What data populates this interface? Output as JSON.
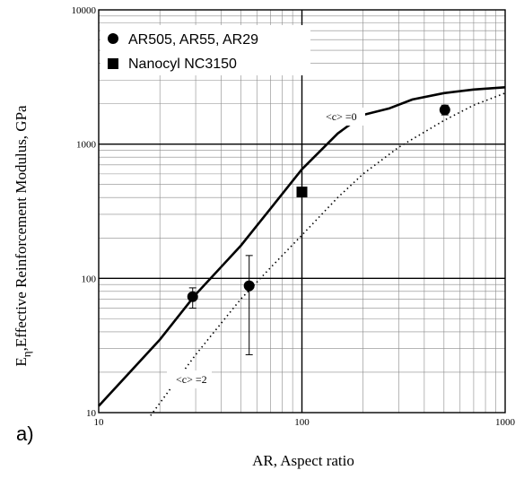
{
  "chart_data": {
    "type": "scatter",
    "panel_label": "a)",
    "xlabel": "AR,  Aspect ratio",
    "ylabel_main": "E",
    "ylabel_sub": "η",
    "ylabel_rest": ",Effective Reinforcement Modulus, GPa",
    "x_scale": "log",
    "y_scale": "log",
    "xlim": [
      10,
      1000
    ],
    "ylim": [
      10,
      10000
    ],
    "x_ticks": [
      "10",
      "100",
      "1000"
    ],
    "y_ticks": [
      "10",
      "100",
      "1000",
      "10000"
    ],
    "grid": true,
    "legend_position": "top-left",
    "series": [
      {
        "name": "AR505, AR55, AR29",
        "marker": "circle",
        "points": [
          {
            "x": 29,
            "y": 73,
            "err_low": 60,
            "err_high": 85
          },
          {
            "x": 55,
            "y": 88,
            "err_low": 27,
            "err_high": 148
          },
          {
            "x": 505,
            "y": 1800,
            "err_low": 1650,
            "err_high": 1950
          }
        ]
      },
      {
        "name": "Nanocyl NC3150",
        "marker": "square",
        "points": [
          {
            "x": 100,
            "y": 440
          }
        ]
      }
    ],
    "curves": [
      {
        "label": "<c> =0",
        "style": "solid",
        "points": [
          [
            10,
            11.2
          ],
          [
            20,
            35
          ],
          [
            30,
            76
          ],
          [
            50,
            175
          ],
          [
            70,
            330
          ],
          [
            100,
            650
          ],
          [
            150,
            1200
          ],
          [
            200,
            1650
          ],
          [
            270,
            1850
          ],
          [
            350,
            2150
          ],
          [
            500,
            2400
          ],
          [
            700,
            2550
          ],
          [
            1000,
            2650
          ]
        ]
      },
      {
        "label": "<c> =2",
        "style": "dotted",
        "points": [
          [
            18,
            9.5
          ],
          [
            30,
            27
          ],
          [
            50,
            70
          ],
          [
            70,
            120
          ],
          [
            100,
            210
          ],
          [
            150,
            400
          ],
          [
            200,
            600
          ],
          [
            300,
            950
          ],
          [
            500,
            1500
          ],
          [
            700,
            1950
          ],
          [
            1000,
            2400
          ]
        ]
      }
    ]
  }
}
